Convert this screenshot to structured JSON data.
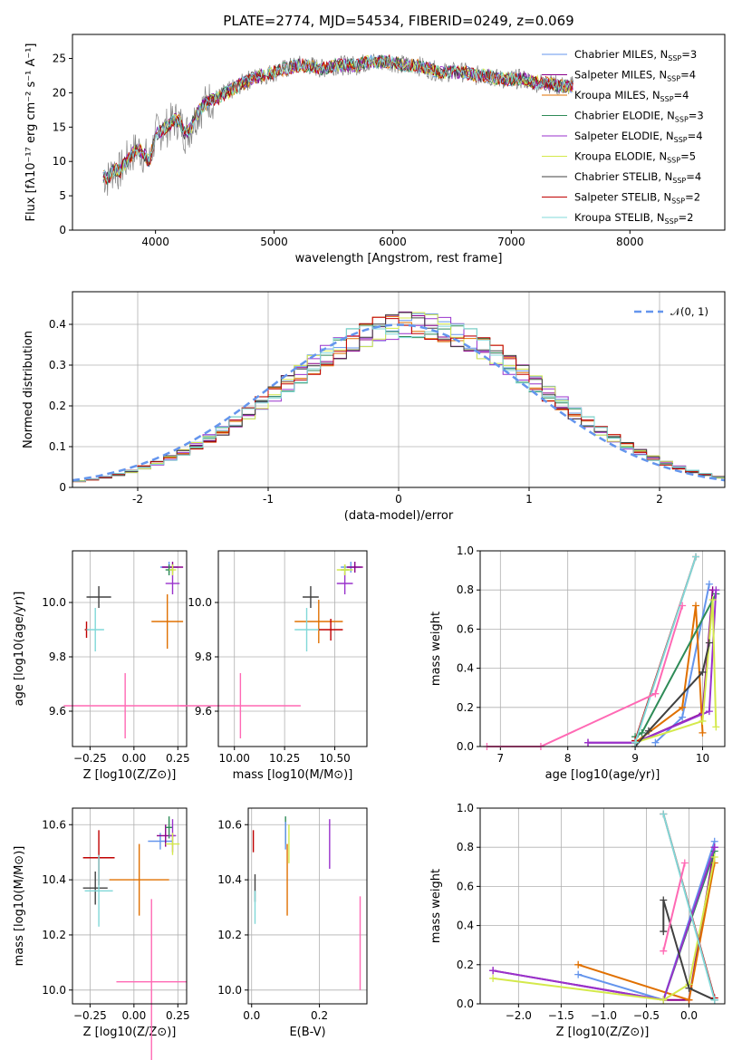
{
  "title": "PLATE=2774, MJD=54534, FIBERID=0249, z=0.069",
  "colors": [
    "#6495ed",
    "#8b008b",
    "#e07000",
    "#2e8b57",
    "#9932cc",
    "#d4e94b",
    "#404040",
    "#c00000",
    "#80d8d8",
    "#ff69b4"
  ],
  "chart_data": [
    {
      "type": "line",
      "title": "PLATE=2774, MJD=54534, FIBERID=0249, z=0.069",
      "xlabel": "wavelength [Angstrom, rest frame]",
      "ylabel": "Flux [fλ10⁻¹⁷ erg cm⁻² s⁻¹ A⁻¹]",
      "xlim": [
        3300,
        8800
      ],
      "ylim": [
        0,
        28.5
      ],
      "xticks": [
        4000,
        5000,
        6000,
        7000,
        8000
      ],
      "yticks": [
        0,
        5,
        10,
        15,
        20,
        25
      ],
      "legend": [
        "Chabrier MILES, N_SSP=3",
        "Salpeter MILES, N_SSP=4",
        "Kroupa MILES, N_SSP=4",
        "Chabrier ELODIE, N_SSP=3",
        "Salpeter ELODIE, N_SSP=4",
        "Kroupa ELODIE, N_SSP=5",
        "Chabrier STELIB, N_SSP=4",
        "Salpeter STELIB, N_SSP=2",
        "Kroupa STELIB, N_SSP=2"
      ],
      "legend_labels": [
        "Chabrier MILES, N",
        "Salpeter MILES, N",
        "Kroupa MILES, N",
        "Chabrier ELODIE, N",
        "Salpeter ELODIE, N",
        "Kroupa ELODIE, N",
        "Chabrier STELIB, N",
        "Salpeter STELIB, N",
        "Kroupa STELIB, N"
      ],
      "legend_sub": "SSP",
      "legend_counts": [
        "=3",
        "=4",
        "=4",
        "=3",
        "=4",
        "=5",
        "=4",
        "=2",
        "=2"
      ],
      "legend_placement": "right",
      "series": {
        "wavelength": [
          3550,
          3600,
          3650,
          3700,
          3750,
          3800,
          3850,
          3900,
          3950,
          4000,
          4050,
          4100,
          4150,
          4200,
          4250,
          4300,
          4350,
          4400,
          4450,
          4500,
          4600,
          4700,
          4800,
          4900,
          5000,
          5100,
          5200,
          5300,
          5400,
          5500,
          5600,
          5700,
          5800,
          5900,
          6000,
          6100,
          6200,
          6300,
          6400,
          6500,
          6600,
          6700,
          6800,
          6900,
          7000,
          7100,
          7200,
          7300,
          7400,
          7500
        ],
        "flux": [
          8,
          7.5,
          9,
          8.5,
          10,
          11,
          12,
          11,
          10,
          14,
          14.5,
          15,
          16,
          16,
          14,
          15,
          17,
          18,
          19,
          19,
          20,
          21,
          22,
          22.5,
          23,
          23.5,
          24,
          24,
          23.5,
          24,
          24,
          24,
          24.5,
          24.5,
          24.5,
          24,
          24,
          23.5,
          23,
          23,
          23,
          22.5,
          22.5,
          22,
          22,
          22,
          21.5,
          21.5,
          21,
          21
        ]
      }
    },
    {
      "type": "bar",
      "xlabel": "(data-model)/error",
      "ylabel": "Normed distribution",
      "xlim": [
        -2.5,
        2.5
      ],
      "ylim": [
        0,
        0.48
      ],
      "xticks": [
        -2,
        -1,
        0,
        1,
        2
      ],
      "yticks": [
        0.0,
        0.1,
        0.2,
        0.3,
        0.4
      ],
      "legend": [
        "𝒩(0, 1)"
      ],
      "legend_placement": "top-right",
      "bin_width": 0.1,
      "hist_values": [
        0.02,
        0.025,
        0.03,
        0.04,
        0.045,
        0.05,
        0.06,
        0.07,
        0.08,
        0.09,
        0.1,
        0.115,
        0.13,
        0.145,
        0.16,
        0.18,
        0.2,
        0.22,
        0.24,
        0.26,
        0.28,
        0.3,
        0.31,
        0.33,
        0.35,
        0.36,
        0.37,
        0.38,
        0.39,
        0.4,
        0.41,
        0.4,
        0.41,
        0.4,
        0.39,
        0.38,
        0.37,
        0.36,
        0.34,
        0.33,
        0.32,
        0.3,
        0.28,
        0.27,
        0.26,
        0.24,
        0.22,
        0.2,
        0.19,
        0.17
      ],
      "hist_values_r": [
        0.36,
        0.34,
        0.33,
        0.31,
        0.3,
        0.28,
        0.27,
        0.26,
        0.24,
        0.22,
        0.2,
        0.18,
        0.17,
        0.15,
        0.14,
        0.13,
        0.12,
        0.1,
        0.09,
        0.08,
        0.07,
        0.06,
        0.05,
        0.05,
        0.04
      ]
    },
    {
      "type": "scatter",
      "xlabel": "Z [log10(Z/Z⊙)]",
      "ylabel": "age  [log10(age/yr)]",
      "xlim": [
        -0.35,
        0.3
      ],
      "ylim": [
        9.47,
        10.19
      ],
      "xticks": [
        -0.25,
        0.0,
        0.25
      ],
      "xtick_labels": [
        "−0.25",
        "0.00",
        "0.25"
      ],
      "yticks": [
        9.6,
        9.8,
        10.0
      ],
      "ytick_labels": [
        "9.6",
        "9.8",
        "10.0"
      ],
      "points": [
        {
          "x": 0.2,
          "y": 10.13,
          "ex": 0.05,
          "ey": 0.02,
          "c": 0
        },
        {
          "x": 0.22,
          "y": 10.13,
          "ex": 0.06,
          "ey": 0.02,
          "c": 1
        },
        {
          "x": 0.19,
          "y": 9.93,
          "ex": 0.09,
          "ey": 0.1,
          "c": 2
        },
        {
          "x": 0.2,
          "y": 10.12,
          "ex": 0.02,
          "ey": 0.02,
          "c": 3
        },
        {
          "x": 0.22,
          "y": 10.07,
          "ex": 0.04,
          "ey": 0.04,
          "c": 4
        },
        {
          "x": 0.22,
          "y": 10.12,
          "ex": 0.02,
          "ey": 0.02,
          "c": 5
        },
        {
          "x": -0.2,
          "y": 10.02,
          "ex": 0.07,
          "ey": 0.04,
          "c": 6
        },
        {
          "x": -0.27,
          "y": 9.9,
          "ex": 0.01,
          "ey": 0.03,
          "c": 7
        },
        {
          "x": -0.22,
          "y": 9.9,
          "ex": 0.05,
          "ey": 0.08,
          "c": 8
        },
        {
          "x": -0.05,
          "y": 9.62,
          "ex": 0.35,
          "ey": 0.12,
          "c": 9
        }
      ]
    },
    {
      "type": "scatter",
      "xlabel": "mass [log10(M/M⊙)]",
      "ylabel": "",
      "xlim": [
        9.92,
        10.66
      ],
      "ylim": [
        9.47,
        10.19
      ],
      "xticks": [
        10.0,
        10.25,
        10.5
      ],
      "xtick_labels": [
        "10.00",
        "10.25",
        "10.50"
      ],
      "yticks": [
        9.6,
        9.8,
        10.0
      ],
      "ytick_labels": [
        "9.6",
        "9.8",
        "10.0"
      ],
      "points": [
        {
          "x": 10.58,
          "y": 10.13,
          "ex": 0.05,
          "ey": 0.02,
          "c": 0
        },
        {
          "x": 10.6,
          "y": 10.13,
          "ex": 0.04,
          "ey": 0.02,
          "c": 1
        },
        {
          "x": 10.42,
          "y": 9.93,
          "ex": 0.12,
          "ey": 0.08,
          "c": 2
        },
        {
          "x": 10.55,
          "y": 10.12,
          "ex": 0.02,
          "ey": 0.02,
          "c": 3
        },
        {
          "x": 10.55,
          "y": 10.07,
          "ex": 0.04,
          "ey": 0.04,
          "c": 4
        },
        {
          "x": 10.55,
          "y": 10.12,
          "ex": 0.04,
          "ey": 0.02,
          "c": 5
        },
        {
          "x": 10.38,
          "y": 10.02,
          "ex": 0.04,
          "ey": 0.04,
          "c": 6
        },
        {
          "x": 10.48,
          "y": 9.9,
          "ex": 0.06,
          "ey": 0.04,
          "c": 7
        },
        {
          "x": 10.36,
          "y": 9.9,
          "ex": 0.06,
          "ey": 0.08,
          "c": 8
        },
        {
          "x": 10.03,
          "y": 9.62,
          "ex": 0.3,
          "ey": 0.12,
          "c": 9
        }
      ]
    },
    {
      "type": "line",
      "xlabel": "age  [log10(age/yr)]",
      "ylabel": "mass weight",
      "xlim": [
        6.7,
        10.33
      ],
      "ylim": [
        0,
        1.0
      ],
      "xticks": [
        7,
        8,
        9,
        10
      ],
      "xtick_labels": [
        "7",
        "8",
        "9",
        "10"
      ],
      "yticks": [
        0.0,
        0.2,
        0.4,
        0.6,
        0.8,
        1.0
      ],
      "ytick_labels": [
        "0.0",
        "0.2",
        "0.4",
        "0.6",
        "0.8",
        "1.0"
      ],
      "series": [
        {
          "x": [
            9.3,
            9.7,
            10.1
          ],
          "y": [
            0.02,
            0.15,
            0.83
          ],
          "c": 0
        },
        {
          "x": [
            8.3,
            9.0,
            10.0,
            10.15
          ],
          "y": [
            0.02,
            0.02,
            0.17,
            0.8
          ],
          "c": 1
        },
        {
          "x": [
            9.0,
            9.7,
            9.9,
            10.0
          ],
          "y": [
            0.02,
            0.2,
            0.72,
            0.07
          ],
          "c": 2
        },
        {
          "x": [
            9.0,
            9.1,
            10.2
          ],
          "y": [
            0.05,
            0.07,
            0.78
          ],
          "c": 3
        },
        {
          "x": [
            8.3,
            9.0,
            10.1,
            10.2
          ],
          "y": [
            0.02,
            0.02,
            0.18,
            0.8
          ],
          "c": 4
        },
        {
          "x": [
            9.0,
            10.0,
            10.15,
            10.2
          ],
          "y": [
            0.02,
            0.13,
            0.75,
            0.1
          ],
          "c": 5
        },
        {
          "x": [
            9.0,
            9.2,
            10.0,
            10.1
          ],
          "y": [
            0.0,
            0.08,
            0.38,
            0.53
          ],
          "c": 6
        },
        {
          "x": [
            9.0,
            9.9
          ],
          "y": [
            0.03,
            0.97
          ],
          "c": 7
        },
        {
          "x": [
            9.0,
            9.9
          ],
          "y": [
            0.02,
            0.97
          ],
          "c": 8
        },
        {
          "x": [
            6.8,
            7.6,
            9.3,
            9.7
          ],
          "y": [
            0.0,
            0.0,
            0.27,
            0.72
          ],
          "c": 9
        }
      ]
    },
    {
      "type": "scatter",
      "xlabel": "Z [log10(Z/Z⊙)]",
      "ylabel": "mass [log10(M/M⊙)]",
      "xlim": [
        -0.35,
        0.3
      ],
      "ylim": [
        9.95,
        10.66
      ],
      "xticks": [
        -0.25,
        0.0,
        0.25
      ],
      "xtick_labels": [
        "−0.25",
        "0.00",
        "0.25"
      ],
      "yticks": [
        10.0,
        10.2,
        10.4,
        10.6
      ],
      "ytick_labels": [
        "10.0",
        "10.2",
        "10.4",
        "10.6"
      ],
      "points": [
        {
          "x": 0.15,
          "y": 10.54,
          "ex": 0.07,
          "ey": 0.03,
          "c": 0
        },
        {
          "x": 0.18,
          "y": 10.56,
          "ex": 0.05,
          "ey": 0.04,
          "c": 1
        },
        {
          "x": 0.03,
          "y": 10.4,
          "ex": 0.17,
          "ey": 0.13,
          "c": 2
        },
        {
          "x": 0.2,
          "y": 10.59,
          "ex": 0.02,
          "ey": 0.04,
          "c": 3
        },
        {
          "x": 0.22,
          "y": 10.56,
          "ex": 0.02,
          "ey": 0.06,
          "c": 4
        },
        {
          "x": 0.22,
          "y": 10.53,
          "ex": 0.04,
          "ey": 0.04,
          "c": 5
        },
        {
          "x": -0.22,
          "y": 10.37,
          "ex": 0.07,
          "ey": 0.06,
          "c": 6
        },
        {
          "x": -0.2,
          "y": 10.48,
          "ex": 0.09,
          "ey": 0.1,
          "c": 7
        },
        {
          "x": -0.2,
          "y": 10.36,
          "ex": 0.08,
          "ey": 0.13,
          "c": 8
        },
        {
          "x": 0.1,
          "y": 10.03,
          "ex": 0.2,
          "ey": 0.3,
          "c": 9
        }
      ]
    },
    {
      "type": "scatter",
      "xlabel": "E(B-V)",
      "ylabel": "",
      "xlim": [
        -0.01,
        0.34
      ],
      "ylim": [
        9.95,
        10.66
      ],
      "xticks": [
        0.0,
        0.2
      ],
      "xtick_labels": [
        "0.0",
        "0.2"
      ],
      "yticks": [
        10.0,
        10.2,
        10.4,
        10.6
      ],
      "ytick_labels": [
        "10.0",
        "10.2",
        "10.4",
        "10.6"
      ],
      "points": [
        {
          "x": 0.005,
          "y": 10.54,
          "ex": 0,
          "ey": 0.04,
          "c": 7
        },
        {
          "x": 0.01,
          "y": 10.37,
          "ex": 0,
          "ey": 0.05,
          "c": 6
        },
        {
          "x": 0.01,
          "y": 10.3,
          "ex": 0,
          "ey": 0.06,
          "c": 8
        },
        {
          "x": 0.1,
          "y": 10.58,
          "ex": 0,
          "ey": 0.05,
          "c": 3
        },
        {
          "x": 0.1,
          "y": 10.56,
          "ex": 0,
          "ey": 0.05,
          "c": 0
        },
        {
          "x": 0.105,
          "y": 10.4,
          "ex": 0,
          "ey": 0.13,
          "c": 2
        },
        {
          "x": 0.11,
          "y": 10.53,
          "ex": 0,
          "ey": 0.07,
          "c": 5
        },
        {
          "x": 0.23,
          "y": 10.53,
          "ex": 0,
          "ey": 0.09,
          "c": 4
        },
        {
          "x": 0.32,
          "y": 10.17,
          "ex": 0,
          "ey": 0.17,
          "c": 9
        }
      ]
    },
    {
      "type": "line",
      "xlabel": "Z [log10(Z/Z⊙)]",
      "ylabel": "mass weight",
      "xlim": [
        -2.45,
        0.42
      ],
      "ylim": [
        0,
        1.0
      ],
      "xticks": [
        -2.0,
        -1.5,
        -1.0,
        -0.5,
        0.0
      ],
      "xtick_labels": [
        "−2.0",
        "−1.5",
        "−1.0",
        "−0.5",
        "0.0"
      ],
      "yticks": [
        0.0,
        0.2,
        0.4,
        0.6,
        0.8,
        1.0
      ],
      "ytick_labels": [
        "0.0",
        "0.2",
        "0.4",
        "0.6",
        "0.8",
        "1.0"
      ],
      "series": [
        {
          "x": [
            -1.3,
            -0.3,
            0.3
          ],
          "y": [
            0.15,
            0.02,
            0.83
          ],
          "c": 0
        },
        {
          "x": [
            -2.3,
            -0.3,
            0.0,
            0.3
          ],
          "y": [
            0.17,
            0.02,
            0.02,
            0.8
          ],
          "c": 1
        },
        {
          "x": [
            -1.3,
            0.0,
            0.3
          ],
          "y": [
            0.2,
            0.02,
            0.72
          ],
          "c": 2
        },
        {
          "x": [
            -0.3,
            0.3
          ],
          "y": [
            0.02,
            0.78
          ],
          "c": 3
        },
        {
          "x": [
            -2.3,
            -0.3,
            0.3
          ],
          "y": [
            0.17,
            0.02,
            0.8
          ],
          "c": 4
        },
        {
          "x": [
            -2.3,
            -0.3,
            0.0,
            0.3
          ],
          "y": [
            0.13,
            0.02,
            0.1,
            0.75
          ],
          "c": 5
        },
        {
          "x": [
            -0.3,
            -0.3,
            0.0,
            0.3
          ],
          "y": [
            0.37,
            0.53,
            0.08,
            0.02
          ],
          "c": 6
        },
        {
          "x": [
            -0.3,
            0.3
          ],
          "y": [
            0.97,
            0.03
          ],
          "c": 7
        },
        {
          "x": [
            -0.3,
            0.3
          ],
          "y": [
            0.97,
            0.02
          ],
          "c": 8
        },
        {
          "x": [
            -0.3,
            -0.05
          ],
          "y": [
            0.27,
            0.72
          ],
          "c": 9
        }
      ]
    }
  ]
}
